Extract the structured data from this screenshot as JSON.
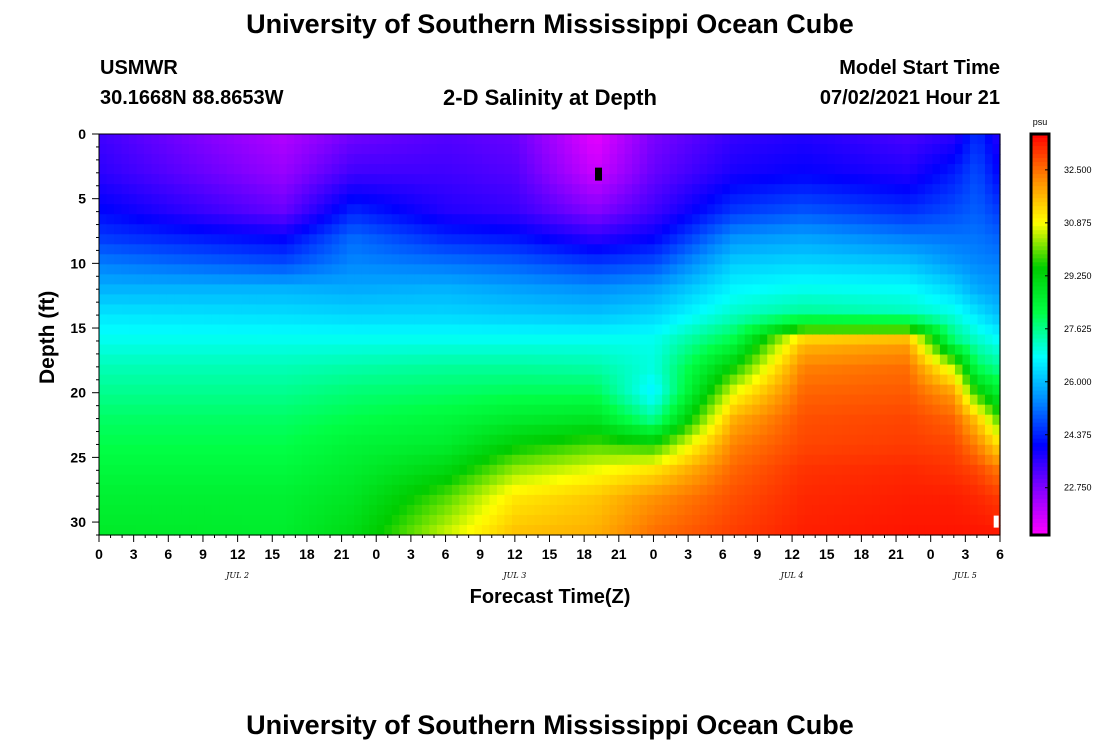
{
  "header": {
    "top_title": "University of Southern Mississippi Ocean Cube",
    "bottom_title": "University of Southern Mississippi Ocean Cube",
    "station": "USMWR",
    "location": "30.1668N  88.8653W",
    "plot_title": "2-D Salinity at Depth",
    "start_label": "Model Start Time",
    "start_value": "07/02/2021 Hour 21"
  },
  "colors": {
    "colormap": [
      "#ff00ff",
      "#8800ff",
      "#0000ff",
      "#0088ff",
      "#00ffff",
      "#00ff44",
      "#00cc00",
      "#ffff00",
      "#ff8800",
      "#ff0000"
    ]
  },
  "chart_data": {
    "type": "heatmap",
    "title": "2-D Salinity at Depth",
    "xlabel": "Forecast Time(Z)",
    "ylabel": "Depth (ft)",
    "x_tick_labels": [
      "0",
      "3",
      "6",
      "9",
      "12",
      "15",
      "18",
      "21",
      "0",
      "3",
      "6",
      "9",
      "12",
      "15",
      "18",
      "21",
      "0",
      "3",
      "6",
      "9",
      "12",
      "15",
      "18",
      "21",
      "0",
      "3",
      "6"
    ],
    "x_range_hours": [
      0,
      78
    ],
    "date_labels": [
      {
        "label": "JUL 2",
        "hour": 12
      },
      {
        "label": "JUL 3",
        "hour": 36
      },
      {
        "label": "JUL 4",
        "hour": 60
      },
      {
        "label": "JUL 5",
        "hour": 75
      }
    ],
    "y_tick_labels": [
      "0",
      "5",
      "10",
      "15",
      "20",
      "25",
      "30"
    ],
    "ylim": [
      0,
      31
    ],
    "y_reversed": true,
    "colorbar": {
      "unit": "psu",
      "ticks": [
        "32.500",
        "30.875",
        "29.250",
        "27.625",
        "26.000",
        "24.375",
        "22.750"
      ],
      "range": [
        21.3,
        33.6
      ]
    },
    "depth_profiles_ft": [
      0,
      3,
      6,
      8,
      10,
      12,
      14,
      16,
      18,
      20,
      22,
      24,
      26,
      28,
      31
    ],
    "salinity_profiles": [
      {
        "hour": 0,
        "values": [
          23.4,
          23.6,
          24.1,
          24.6,
          25.3,
          25.9,
          26.5,
          26.9,
          27.3,
          27.6,
          27.9,
          28.1,
          28.3,
          28.5,
          28.7
        ]
      },
      {
        "hour": 16,
        "values": [
          22.2,
          22.5,
          23.0,
          24.0,
          24.8,
          25.9,
          26.4,
          26.9,
          27.3,
          27.6,
          27.9,
          28.1,
          28.3,
          28.5,
          28.6
        ]
      },
      {
        "hour": 22,
        "values": [
          22.9,
          23.4,
          24.4,
          25.1,
          25.4,
          25.8,
          26.3,
          26.9,
          27.4,
          27.8,
          28.1,
          28.4,
          28.6,
          28.8,
          29.1
        ]
      },
      {
        "hour": 30,
        "values": [
          23.2,
          23.4,
          23.7,
          24.4,
          25.2,
          25.9,
          26.3,
          26.9,
          27.5,
          27.9,
          28.3,
          28.6,
          29.2,
          29.9,
          30.6
        ]
      },
      {
        "hour": 36,
        "values": [
          23.0,
          23.2,
          23.5,
          24.2,
          25.0,
          25.7,
          26.2,
          26.9,
          27.5,
          28.0,
          28.6,
          29.4,
          30.3,
          31.1,
          31.6
        ]
      },
      {
        "hour": 43,
        "values": [
          21.6,
          21.9,
          22.7,
          23.6,
          24.6,
          25.5,
          26.1,
          26.9,
          27.4,
          28.0,
          28.8,
          29.9,
          30.8,
          31.5,
          31.8
        ]
      },
      {
        "hour": 48,
        "values": [
          22.8,
          23.0,
          23.4,
          24.0,
          24.8,
          25.7,
          26.3,
          26.9,
          27.0,
          26.6,
          27.5,
          29.6,
          31.2,
          32.1,
          32.5
        ]
      },
      {
        "hour": 55,
        "values": [
          23.5,
          23.8,
          24.6,
          25.5,
          26.2,
          26.7,
          27.2,
          28.2,
          29.5,
          30.8,
          31.8,
          32.3,
          32.6,
          32.8,
          33.0
        ]
      },
      {
        "hour": 61,
        "values": [
          23.7,
          24.0,
          24.9,
          25.7,
          26.3,
          26.9,
          27.6,
          31.6,
          32.3,
          32.6,
          32.8,
          32.9,
          33.1,
          33.2,
          33.3
        ]
      },
      {
        "hour": 70,
        "values": [
          23.3,
          23.7,
          24.5,
          25.3,
          26.1,
          26.8,
          27.3,
          31.9,
          32.5,
          32.7,
          32.9,
          33.0,
          33.2,
          33.3,
          33.4
        ]
      },
      {
        "hour": 74,
        "values": [
          23.6,
          24.3,
          24.8,
          25.2,
          25.6,
          26.3,
          27.0,
          27.8,
          30.5,
          32.0,
          32.6,
          32.9,
          33.1,
          33.3,
          33.4
        ]
      },
      {
        "hour": 76,
        "values": [
          24.5,
          24.8,
          25.0,
          25.2,
          25.4,
          25.8,
          26.5,
          27.2,
          28.0,
          29.6,
          31.5,
          32.3,
          32.9,
          33.2,
          33.4
        ]
      },
      {
        "hour": 78,
        "values": [
          23.6,
          24.0,
          24.6,
          25.0,
          25.3,
          25.6,
          26.0,
          26.8,
          27.5,
          28.5,
          29.8,
          31.2,
          32.4,
          33.0,
          33.4
        ]
      }
    ]
  }
}
